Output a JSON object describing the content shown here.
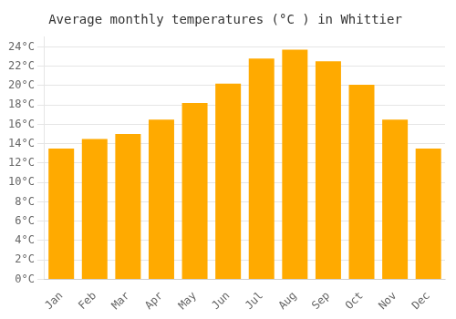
{
  "chart_data": {
    "type": "bar",
    "title": "Average monthly temperatures (°C ) in Whittier",
    "categories": [
      "Jan",
      "Feb",
      "Mar",
      "Apr",
      "May",
      "Jun",
      "Jul",
      "Aug",
      "Sep",
      "Oct",
      "Nov",
      "Dec"
    ],
    "values": [
      13.5,
      14.5,
      15.0,
      16.5,
      18.2,
      20.2,
      22.8,
      23.7,
      22.5,
      20.1,
      16.5,
      13.5
    ],
    "color": "#FFAA00",
    "ylim": [
      0,
      25
    ],
    "yticks": [
      {
        "value": 0,
        "label": "0°C"
      },
      {
        "value": 2,
        "label": "2°C"
      },
      {
        "value": 4,
        "label": "4°C"
      },
      {
        "value": 6,
        "label": "6°C"
      },
      {
        "value": 8,
        "label": "8°C"
      },
      {
        "value": 10,
        "label": "10°C"
      },
      {
        "value": 12,
        "label": "12°C"
      },
      {
        "value": 14,
        "label": "14°C"
      },
      {
        "value": 16,
        "label": "16°C"
      },
      {
        "value": 18,
        "label": "18°C"
      },
      {
        "value": 20,
        "label": "20°C"
      },
      {
        "value": 22,
        "label": "22°C"
      },
      {
        "value": 24,
        "label": "24°C"
      }
    ],
    "grid": true
  }
}
